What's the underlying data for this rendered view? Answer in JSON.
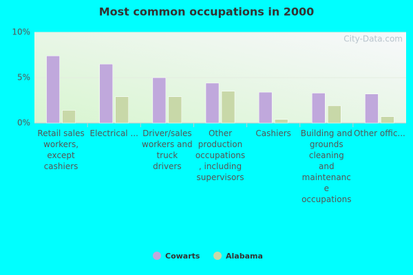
{
  "chart_data": {
    "type": "bar",
    "title": "Most common occupations in 2000",
    "watermark": "City-Data.com",
    "categories": [
      "Retail sales workers, except cashiers",
      "Electrical ...",
      "Driver/sales workers and truck drivers",
      "Other production occupations, including supervisors",
      "Cashiers",
      "Building and grounds cleaning and maintenance occupations",
      "Other offic..."
    ],
    "series": [
      {
        "name": "Cowarts",
        "color": "#c0a8dc",
        "values": [
          7.4,
          6.5,
          5.0,
          4.4,
          3.4,
          3.3,
          3.2
        ]
      },
      {
        "name": "Alabama",
        "color": "#c8d8a8",
        "values": [
          1.4,
          2.9,
          2.9,
          3.5,
          0.4,
          1.9,
          0.7
        ]
      }
    ],
    "ylim": [
      0,
      10
    ],
    "yticks": [
      {
        "value": 0,
        "label": "0%"
      },
      {
        "value": 5,
        "label": "5%"
      },
      {
        "value": 10,
        "label": "10%"
      }
    ],
    "grid": true
  }
}
